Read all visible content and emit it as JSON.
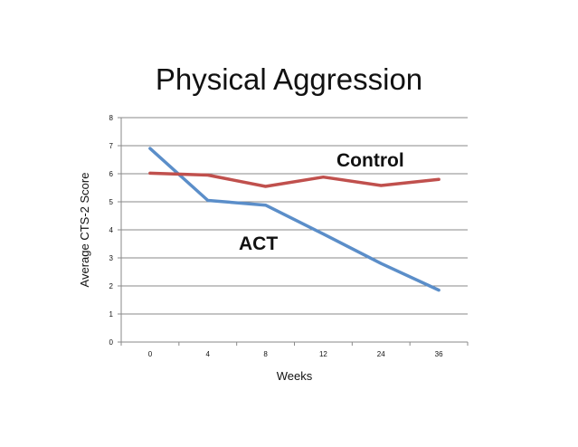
{
  "chart_data": {
    "type": "line",
    "title": "Physical Aggression",
    "xlabel": "Weeks",
    "ylabel": "Average CTS-2 Score",
    "categories": [
      "0",
      "4",
      "8",
      "12",
      "24",
      "36"
    ],
    "ylim": [
      0,
      8
    ],
    "yticks": [
      0,
      1,
      2,
      3,
      4,
      5,
      6,
      7,
      8
    ],
    "grid": true,
    "legend": "none",
    "series": [
      {
        "name": "ACT",
        "values": [
          6.9,
          5.05,
          4.88,
          3.85,
          2.8,
          1.85
        ],
        "color": "#5b8ec9"
      },
      {
        "name": "Control",
        "values": [
          6.02,
          5.95,
          5.55,
          5.88,
          5.58,
          5.8
        ],
        "color": "#c0504d"
      }
    ]
  }
}
